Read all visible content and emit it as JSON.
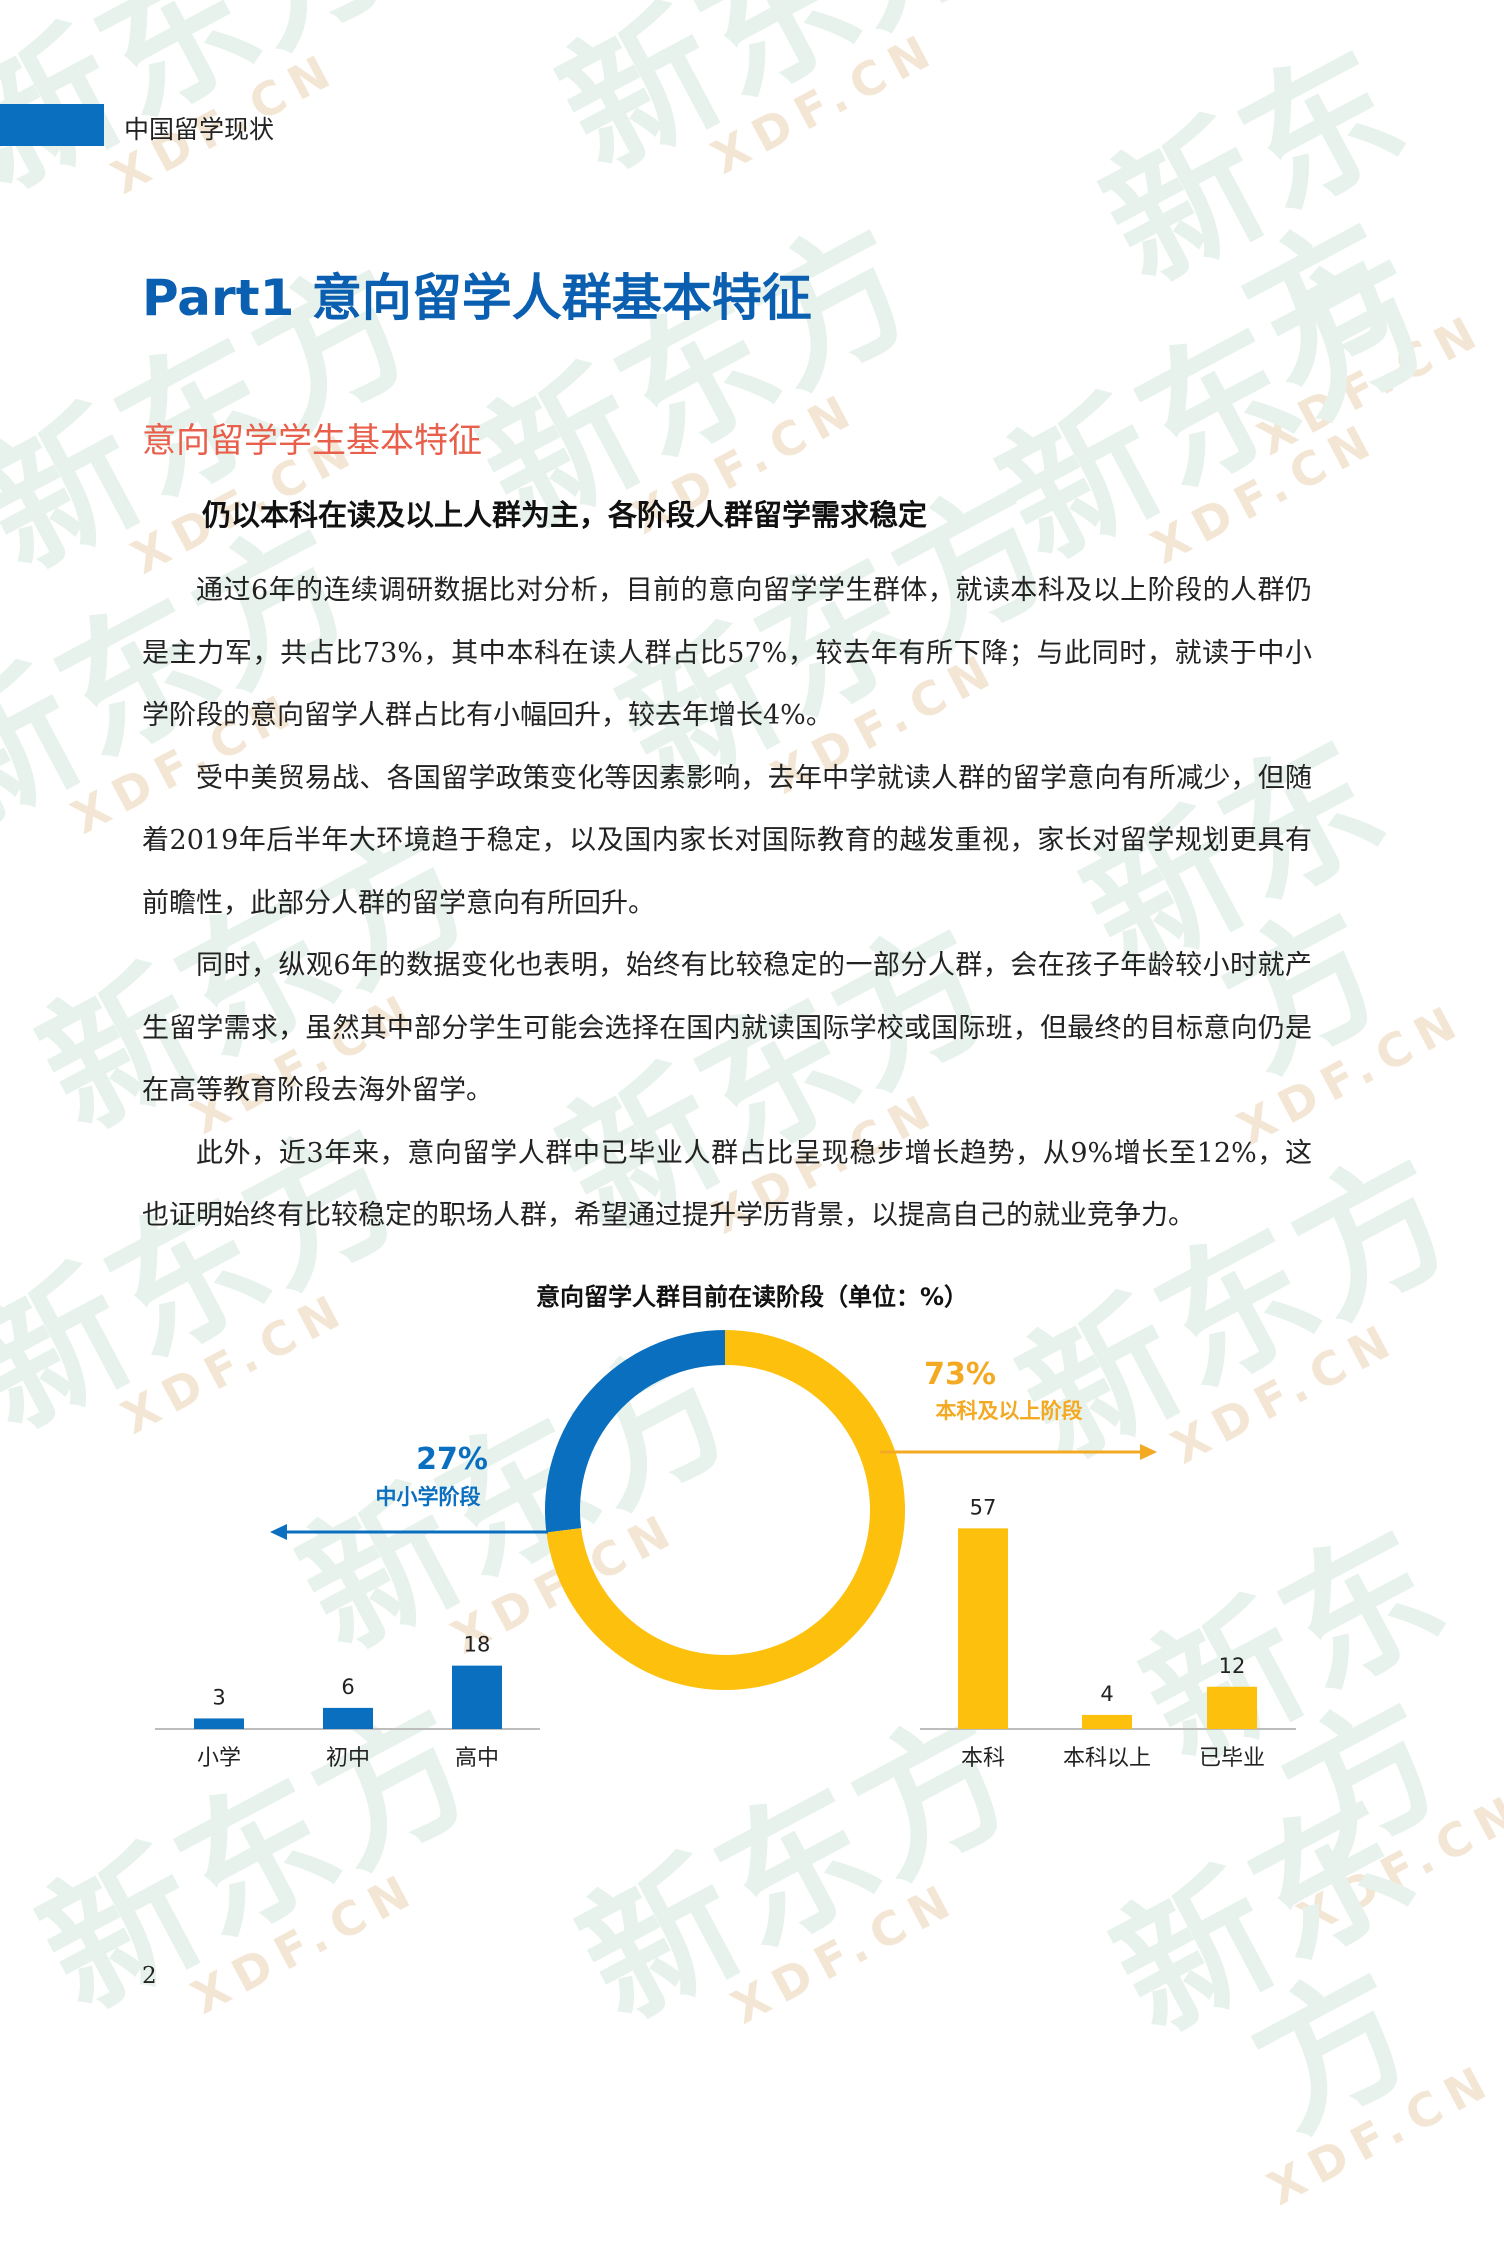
{
  "header": {
    "section_label": "中国留学现状"
  },
  "part_title": "Part1  意向留学人群基本特征",
  "section_title": "意向留学学生基本特征",
  "sub_title": "仍以本科在读及以上人群为主，各阶段人群留学需求稳定",
  "paragraphs": [
    "通过6年的连续调研数据比对分析，目前的意向留学学生群体，就读本科及以上阶段的人群仍是主力军，共占比73%，其中本科在读人群占比57%，较去年有所下降；与此同时，就读于中小学阶段的意向留学人群占比有小幅回升，较去年增长4%。",
    "受中美贸易战、各国留学政策变化等因素影响，去年中学就读人群的留学意向有所减少，但随着2019年后半年大环境趋于稳定，以及国内家长对国际教育的越发重视，家长对留学规划更具有前瞻性，此部分人群的留学意向有所回升。",
    "同时，纵观6年的数据变化也表明，始终有比较稳定的一部分人群，会在孩子年龄较小时就产生留学需求，虽然其中部分学生可能会选择在国内就读国际学校或国际班，但最终的目标意向仍是在高等教育阶段去海外留学。",
    "此外，近3年来，意向留学人群中已毕业人群占比呈现稳步增长趋势，从9%增长至12%，这也证明始终有比较稳定的职场人群，希望通过提升学历背景，以提高自己的就业竞争力。"
  ],
  "chart_data": {
    "type": "donut+bar",
    "title": "意向留学人群目前在读阶段（单位：%）",
    "donut": [
      {
        "name": "中小学阶段",
        "value": 27,
        "label": "27%",
        "color": "#0b6fbf"
      },
      {
        "name": "本科及以上阶段",
        "value": 73,
        "label": "73%",
        "color": "#fcc00d"
      }
    ],
    "left_bars": {
      "group": "中小学阶段",
      "categories": [
        "小学",
        "初中",
        "高中"
      ],
      "values": [
        3,
        6,
        18
      ],
      "color": "#0b6fbf"
    },
    "right_bars": {
      "group": "本科及以上阶段",
      "categories": [
        "本科",
        "本科以上",
        "已毕业"
      ],
      "values": [
        57,
        4,
        12
      ],
      "color": "#fcc00d"
    },
    "label_color_left": "#0b6fbf",
    "label_color_right": "#f4a922"
  },
  "watermark": {
    "big": "新东方",
    "small": "XDF.CN"
  },
  "page_number": "2"
}
